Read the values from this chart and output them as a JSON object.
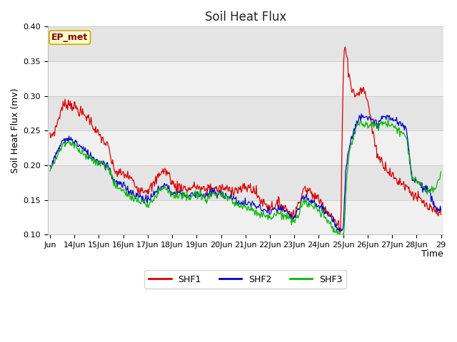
{
  "title": "Soil Heat Flux",
  "xlabel": "Time",
  "ylabel": "Soil Heat Flux (mv)",
  "ylim": [
    0.1,
    0.4
  ],
  "xtick_labels": [
    "Jun",
    "14Jun",
    "15Jun",
    "16Jun",
    "17Jun",
    "18Jun",
    "19Jun",
    "20Jun",
    "21Jun",
    "22Jun",
    "23Jun",
    "24Jun",
    "25Jun",
    "26Jun",
    "27Jun",
    "28Jun",
    "29"
  ],
  "annotation_text": "EP_met",
  "annotation_bg": "#ffffcc",
  "annotation_border": "#ccaa00",
  "annotation_text_color": "#880000",
  "shf1_color": "#dd0000",
  "shf2_color": "#0000cc",
  "shf3_color": "#00bb00",
  "fig_bg_color": "#ffffff",
  "plot_bg_light": "#f0f0f0",
  "plot_bg_dark": "#e0e0e0",
  "grid_color": "#d0d0d0",
  "title_fontsize": 12,
  "axis_label_fontsize": 9,
  "tick_fontsize": 8,
  "band_colors": [
    "#f0f0f0",
    "#e4e4e4"
  ]
}
